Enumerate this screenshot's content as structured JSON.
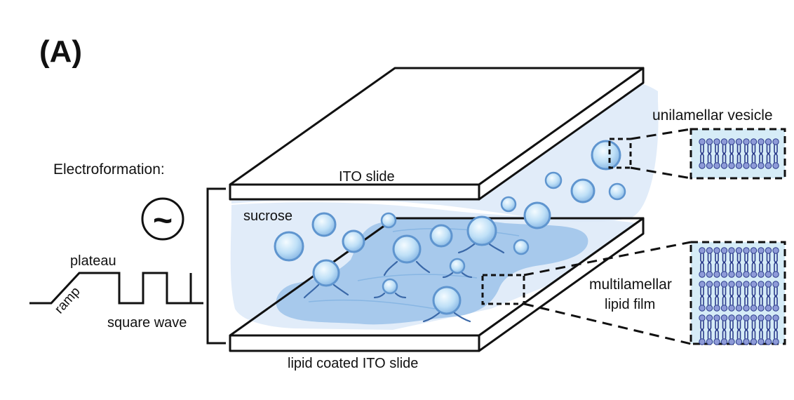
{
  "panel_label": "(A)",
  "electroformation": {
    "title": "Electroformation:",
    "ac_symbol": "~",
    "waveform": {
      "plateau": "plateau",
      "ramp": "ramp",
      "square_wave": "square wave"
    }
  },
  "slides": {
    "top": "ITO slide",
    "bottom": "lipid coated ITO slide",
    "medium": "sucrose"
  },
  "insets": {
    "top": "unilamellar vesicle",
    "bottom_line1": "multilamellar",
    "bottom_line2": "lipid film"
  },
  "colors": {
    "outline": "#111111",
    "medium": "#dce9f8",
    "film": "#9cc3ea",
    "vesicle_fill": "#c9e4f8",
    "vesicle_edge": "#5f95cf",
    "inset_bg": "#d6ecf7",
    "lipid_head": "#8e9bd8",
    "lipid_tail": "#2a3a8a"
  }
}
